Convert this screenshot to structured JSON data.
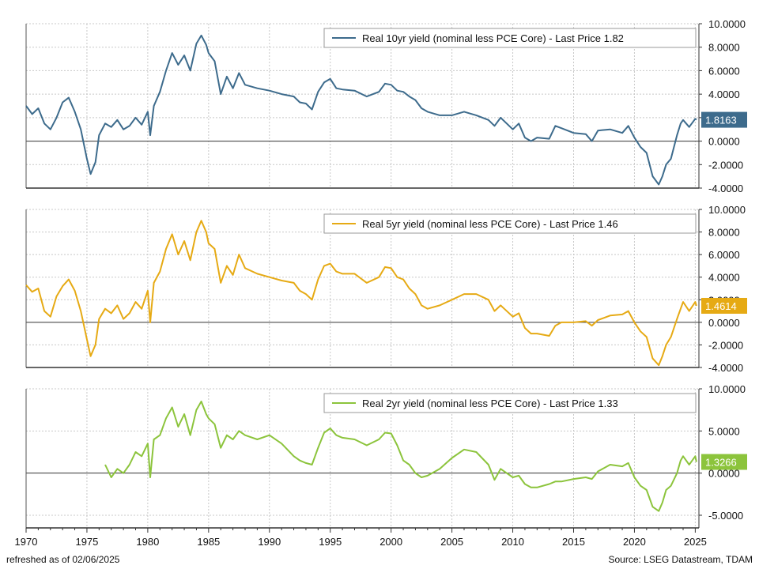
{
  "footer": {
    "refreshed": "refreshed as of  02/06/2025",
    "source": "Source: LSEG Datastream, TDAM"
  },
  "chart_data": [
    {
      "type": "line",
      "x_axis": {
        "min": 1970,
        "max": 2025.3,
        "ticks": [
          1970,
          1975,
          1980,
          1985,
          1990,
          1995,
          2000,
          2005,
          2010,
          2015,
          2020,
          2025
        ]
      },
      "ylim": [
        -4,
        10
      ],
      "yticks": [
        "10.0000",
        "8.0000",
        "6.0000",
        "4.0000",
        "2.0000",
        "0.0000",
        "-2.0000",
        "-4.0000"
      ],
      "ytick_values": [
        10,
        8,
        6,
        4,
        2,
        0,
        -2,
        -4
      ],
      "grid": true,
      "legend_position": "top-right",
      "series": [
        {
          "name": "Real 10yr yield (nominal less PCE Core) - Last Price 1.82",
          "color": "#3d6b8c",
          "last_label": "1.8163",
          "last_value": 1.8163,
          "x": [
            1970,
            1970.5,
            1971,
            1971.5,
            1972,
            1972.5,
            1973,
            1973.5,
            1974,
            1974.5,
            1975,
            1975.3,
            1975.7,
            1976,
            1976.5,
            1977,
            1977.5,
            1978,
            1978.5,
            1979,
            1979.5,
            1980,
            1980.2,
            1980.5,
            1981,
            1981.5,
            1982,
            1982.5,
            1983,
            1983.5,
            1984,
            1984.4,
            1984.8,
            1985,
            1985.5,
            1986,
            1986.5,
            1987,
            1987.5,
            1988,
            1989,
            1990,
            1991,
            1992,
            1992.5,
            1993,
            1993.5,
            1994,
            1994.5,
            1995,
            1995.5,
            1996,
            1997,
            1998,
            1999,
            1999.5,
            2000,
            2000.5,
            2001,
            2001.5,
            2002,
            2002.5,
            2003,
            2004,
            2005,
            2006,
            2007,
            2008,
            2008.5,
            2009,
            2010,
            2010.5,
            2011,
            2011.5,
            2012,
            2013,
            2013.5,
            2014,
            2015,
            2016,
            2016.5,
            2017,
            2018,
            2019,
            2019.5,
            2020,
            2020.5,
            2021,
            2021.5,
            2022,
            2022.3,
            2022.6,
            2023,
            2023.5,
            2023.8,
            2024,
            2024.5,
            2025,
            2025.1
          ],
          "y": [
            3.0,
            2.3,
            2.8,
            1.5,
            1.0,
            2.0,
            3.3,
            3.7,
            2.5,
            1.0,
            -1.5,
            -2.8,
            -1.8,
            0.5,
            1.5,
            1.2,
            1.8,
            1.0,
            1.3,
            2.0,
            1.4,
            2.5,
            0.5,
            3.0,
            4.2,
            6.0,
            7.5,
            6.5,
            7.3,
            6.0,
            8.3,
            9.0,
            8.2,
            7.5,
            6.8,
            4.0,
            5.5,
            4.5,
            5.8,
            4.8,
            4.5,
            4.3,
            4.0,
            3.8,
            3.3,
            3.2,
            2.7,
            4.2,
            5.0,
            5.3,
            4.5,
            4.4,
            4.3,
            3.8,
            4.2,
            4.9,
            4.8,
            4.3,
            4.2,
            3.8,
            3.5,
            2.8,
            2.5,
            2.2,
            2.2,
            2.5,
            2.2,
            1.8,
            1.3,
            2.0,
            1.0,
            1.5,
            0.3,
            0.0,
            0.3,
            0.2,
            1.3,
            1.1,
            0.7,
            0.6,
            0.0,
            0.9,
            1.0,
            0.7,
            1.3,
            0.3,
            -0.5,
            -1.0,
            -3.0,
            -3.7,
            -3.0,
            -2.0,
            -1.5,
            0.5,
            1.5,
            1.8,
            1.2,
            1.9,
            1.82
          ]
        }
      ]
    },
    {
      "type": "line",
      "x_axis": {
        "min": 1970,
        "max": 2025.3,
        "ticks": [
          1970,
          1975,
          1980,
          1985,
          1990,
          1995,
          2000,
          2005,
          2010,
          2015,
          2020,
          2025
        ]
      },
      "ylim": [
        -4,
        10
      ],
      "yticks": [
        "10.0000",
        "8.0000",
        "6.0000",
        "4.0000",
        "2.0000",
        "0.0000",
        "-2.0000",
        "-4.0000"
      ],
      "ytick_values": [
        10,
        8,
        6,
        4,
        2,
        0,
        -2,
        -4
      ],
      "grid": true,
      "legend_position": "top-right",
      "series": [
        {
          "name": "Real 5yr yield (nominal less PCE Core) - Last Price 1.46",
          "color": "#e6aa14",
          "last_label": "1.4614",
          "last_value": 1.4614,
          "x": [
            1970,
            1970.5,
            1971,
            1971.5,
            1972,
            1972.5,
            1973,
            1973.5,
            1974,
            1974.5,
            1975,
            1975.3,
            1975.7,
            1976,
            1976.5,
            1977,
            1977.5,
            1978,
            1978.5,
            1979,
            1979.5,
            1980,
            1980.2,
            1980.5,
            1981,
            1981.5,
            1982,
            1982.5,
            1983,
            1983.5,
            1984,
            1984.4,
            1984.8,
            1985,
            1985.5,
            1986,
            1986.5,
            1987,
            1987.5,
            1988,
            1989,
            1990,
            1991,
            1992,
            1992.5,
            1993,
            1993.5,
            1994,
            1994.5,
            1995,
            1995.5,
            1996,
            1997,
            1998,
            1999,
            1999.5,
            2000,
            2000.5,
            2001,
            2001.5,
            2002,
            2002.5,
            2003,
            2004,
            2005,
            2006,
            2007,
            2008,
            2008.5,
            2009,
            2010,
            2010.5,
            2011,
            2011.5,
            2012,
            2013,
            2013.5,
            2014,
            2015,
            2016,
            2016.5,
            2017,
            2018,
            2019,
            2019.5,
            2020,
            2020.5,
            2021,
            2021.5,
            2022,
            2022.3,
            2022.6,
            2023,
            2023.5,
            2023.8,
            2024,
            2024.5,
            2025,
            2025.1
          ],
          "y": [
            3.3,
            2.7,
            3.0,
            1.0,
            0.5,
            2.3,
            3.2,
            3.8,
            2.8,
            1.0,
            -1.5,
            -3.0,
            -2.0,
            0.3,
            1.2,
            0.8,
            1.5,
            0.3,
            0.8,
            1.8,
            1.2,
            2.8,
            0.0,
            3.5,
            4.5,
            6.5,
            7.8,
            6.0,
            7.2,
            5.5,
            8.0,
            9.0,
            8.0,
            7.0,
            6.5,
            3.5,
            5.0,
            4.2,
            6.0,
            4.8,
            4.3,
            4.0,
            3.7,
            3.5,
            2.8,
            2.5,
            2.0,
            3.8,
            5.0,
            5.2,
            4.5,
            4.3,
            4.3,
            3.5,
            4.0,
            4.9,
            4.8,
            4.0,
            3.8,
            3.0,
            2.5,
            1.5,
            1.2,
            1.5,
            2.0,
            2.5,
            2.5,
            2.0,
            1.0,
            1.5,
            0.5,
            0.8,
            -0.5,
            -1.0,
            -1.0,
            -1.2,
            -0.3,
            0.0,
            0.0,
            0.1,
            -0.3,
            0.2,
            0.6,
            0.7,
            1.0,
            0.0,
            -0.8,
            -1.3,
            -3.2,
            -3.8,
            -3.0,
            -2.0,
            -1.3,
            0.3,
            1.2,
            1.8,
            1.0,
            1.8,
            1.46
          ]
        }
      ]
    },
    {
      "type": "line",
      "x_axis": {
        "min": 1970,
        "max": 2025.3,
        "ticks": [
          1970,
          1975,
          1980,
          1985,
          1990,
          1995,
          2000,
          2005,
          2010,
          2015,
          2020,
          2025
        ]
      },
      "ylim": [
        -6.5,
        10
      ],
      "yticks": [
        "10.0000",
        "5.0000",
        "0.0000",
        "-5.0000"
      ],
      "ytick_values": [
        10,
        5,
        0,
        -5
      ],
      "grid": true,
      "legend_position": "top-right",
      "series": [
        {
          "name": "Real 2yr yield (nominal less PCE Core) - Last Price 1.33",
          "color": "#8cc43c",
          "last_label": "1.3266",
          "last_value": 1.3266,
          "x": [
            1976.5,
            1977,
            1977.5,
            1978,
            1978.5,
            1979,
            1979.5,
            1980,
            1980.2,
            1980.5,
            1981,
            1981.5,
            1982,
            1982.5,
            1983,
            1983.5,
            1984,
            1984.4,
            1984.8,
            1985,
            1985.5,
            1986,
            1986.5,
            1987,
            1987.5,
            1988,
            1989,
            1990,
            1991,
            1992,
            1992.5,
            1993,
            1993.5,
            1994,
            1994.5,
            1995,
            1995.5,
            1996,
            1997,
            1998,
            1999,
            1999.5,
            2000,
            2000.5,
            2001,
            2001.5,
            2002,
            2002.5,
            2003,
            2004,
            2005,
            2006,
            2007,
            2008,
            2008.5,
            2009,
            2010,
            2010.5,
            2011,
            2011.5,
            2012,
            2013,
            2013.5,
            2014,
            2015,
            2016,
            2016.5,
            2017,
            2018,
            2019,
            2019.5,
            2020,
            2020.5,
            2021,
            2021.5,
            2022,
            2022.3,
            2022.6,
            2023,
            2023.5,
            2023.8,
            2024,
            2024.5,
            2025,
            2025.1
          ],
          "y": [
            1.0,
            -0.5,
            0.5,
            0.0,
            1.0,
            2.5,
            2.0,
            3.5,
            -0.5,
            4.0,
            4.5,
            6.5,
            7.8,
            5.5,
            7.0,
            4.5,
            7.5,
            8.5,
            7.0,
            6.5,
            5.8,
            3.0,
            4.5,
            4.0,
            5.0,
            4.5,
            4.0,
            4.5,
            3.5,
            2.0,
            1.5,
            1.2,
            1.0,
            3.0,
            4.8,
            5.3,
            4.5,
            4.2,
            4.0,
            3.3,
            4.0,
            4.8,
            4.7,
            3.3,
            1.5,
            1.0,
            0.0,
            -0.5,
            -0.3,
            0.5,
            1.8,
            2.8,
            2.5,
            1.0,
            -0.8,
            0.5,
            -0.5,
            -0.3,
            -1.3,
            -1.7,
            -1.7,
            -1.3,
            -1.0,
            -1.0,
            -0.7,
            -0.5,
            -0.7,
            0.2,
            1.0,
            0.8,
            1.2,
            -0.5,
            -1.5,
            -2.0,
            -4.0,
            -4.5,
            -3.5,
            -2.0,
            -1.5,
            0.0,
            1.5,
            2.0,
            1.0,
            2.0,
            1.33
          ]
        }
      ]
    }
  ]
}
